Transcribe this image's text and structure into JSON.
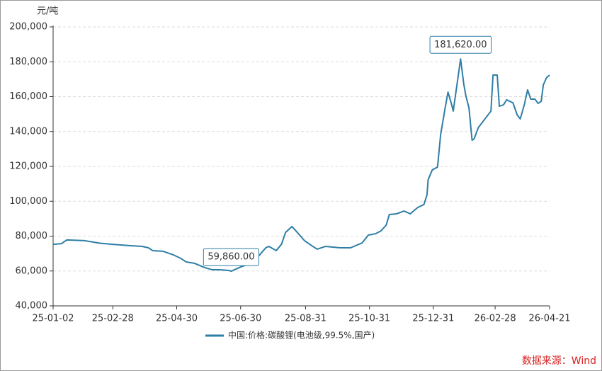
{
  "chart_data": {
    "type": "line",
    "y_unit": "元/吨",
    "x": [
      "25-01-02",
      "25-01-10",
      "25-01-15",
      "25-02-01",
      "25-02-15",
      "25-02-28",
      "25-03-17",
      "25-03-28",
      "25-04-03",
      "25-04-07",
      "25-04-17",
      "25-04-27",
      "25-05-04",
      "25-05-09",
      "25-05-17",
      "25-05-27",
      "25-06-03",
      "25-06-10",
      "25-06-19",
      "25-06-21",
      "25-06-30",
      "25-07-10",
      "25-07-17",
      "25-07-24",
      "25-07-27",
      "25-08-03",
      "25-08-08",
      "25-08-12",
      "25-08-18",
      "25-08-23",
      "25-08-30",
      "25-09-06",
      "25-09-11",
      "25-09-19",
      "25-10-03",
      "25-10-13",
      "25-10-24",
      "25-10-30",
      "25-11-06",
      "25-11-11",
      "25-11-16",
      "25-11-19",
      "25-11-26",
      "25-12-03",
      "25-12-09",
      "25-12-16",
      "25-12-22",
      "25-12-25",
      "25-12-26",
      "25-12-30",
      "26-01-04",
      "26-01-07",
      "26-01-11",
      "26-01-14",
      "26-01-17",
      "26-01-19",
      "26-01-23",
      "26-01-26",
      "26-01-29",
      "26-01-31",
      "26-02-03",
      "26-02-06",
      "26-02-08",
      "26-02-12",
      "26-02-24",
      "26-02-26",
      "26-03-02",
      "26-03-04",
      "26-03-08",
      "26-03-11",
      "26-03-14",
      "26-03-17",
      "26-03-21",
      "26-03-24",
      "26-03-28",
      "26-03-31",
      "26-04-03",
      "26-04-07",
      "26-04-10",
      "26-04-13",
      "26-04-15",
      "26-04-18",
      "26-04-21"
    ],
    "series": [
      {
        "name": "中国:价格:碳酸锂(电池级,99.5%,国产)",
        "color": "#2e7ea6",
        "values": [
          75300,
          75700,
          77800,
          77400,
          76000,
          75300,
          74500,
          74100,
          73300,
          71700,
          71300,
          69200,
          67200,
          65200,
          64400,
          61900,
          60700,
          60700,
          60300,
          59860,
          62300,
          64400,
          68400,
          73300,
          74100,
          71700,
          75300,
          82200,
          85500,
          82200,
          77400,
          74500,
          72500,
          74100,
          73300,
          73300,
          76100,
          80600,
          81400,
          83000,
          86300,
          92400,
          92800,
          94400,
          92800,
          96400,
          98100,
          103800,
          112300,
          118000,
          119600,
          138300,
          152500,
          162600,
          156500,
          151700,
          168700,
          181620,
          167500,
          160600,
          153700,
          135000,
          135800,
          142300,
          151700,
          172400,
          172400,
          154500,
          155300,
          158200,
          157300,
          156500,
          149600,
          147200,
          155700,
          163900,
          158600,
          158600,
          156100,
          157300,
          166700,
          170800,
          172400
        ]
      }
    ],
    "xlim": [
      "25-01-02",
      "26-04-21"
    ],
    "xticks": [
      "25-01-02",
      "25-02-28",
      "25-04-30",
      "25-06-30",
      "25-08-31",
      "25-10-31",
      "25-12-31",
      "26-02-28",
      "26-04-21"
    ],
    "ylim": [
      40000,
      200000
    ],
    "yticks": [
      {
        "value": 40000,
        "label": "40,000"
      },
      {
        "value": 60000,
        "label": "60,000"
      },
      {
        "value": 80000,
        "label": "80,000"
      },
      {
        "value": 100000,
        "label": "100,000"
      },
      {
        "value": 120000,
        "label": "120,000"
      },
      {
        "value": 140000,
        "label": "140,000"
      },
      {
        "value": 160000,
        "label": "160,000"
      },
      {
        "value": 180000,
        "label": "180,000"
      },
      {
        "value": 200000,
        "label": "200,000"
      }
    ],
    "grid": true,
    "legend": "bottom",
    "annotations": [
      {
        "x": "26-01-26",
        "value": 181620,
        "label": "181,620.00"
      },
      {
        "x": "25-06-21",
        "value": 59860,
        "label": "59,860.00"
      }
    ],
    "source": "数据来源：Wind"
  }
}
